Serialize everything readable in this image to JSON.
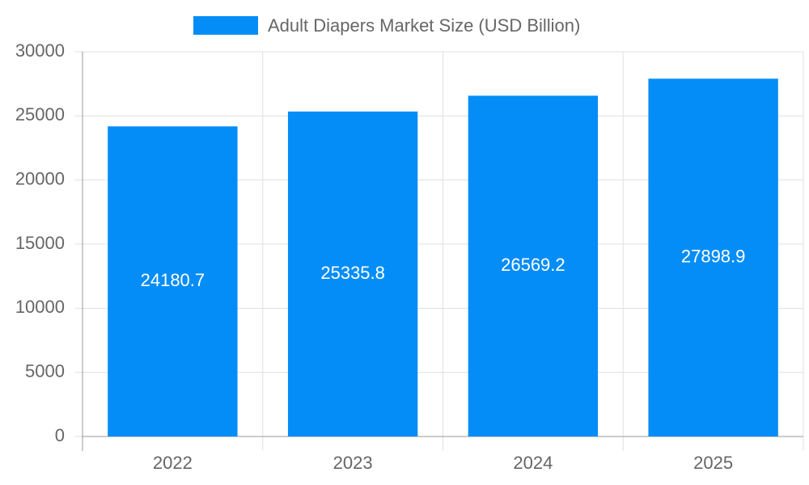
{
  "chart_data": {
    "type": "bar",
    "categories": [
      "2022",
      "2023",
      "2024",
      "2025"
    ],
    "series": [
      {
        "name": "Adult Diapers Market Size (USD Billion)",
        "color": "#058df7",
        "values": [
          24180.7,
          25335.8,
          26569.2,
          27898.9
        ]
      }
    ],
    "ylim": [
      0,
      30000
    ],
    "yticks": [
      0,
      5000,
      10000,
      15000,
      20000,
      25000,
      30000
    ],
    "grid": true,
    "legend": "top"
  }
}
